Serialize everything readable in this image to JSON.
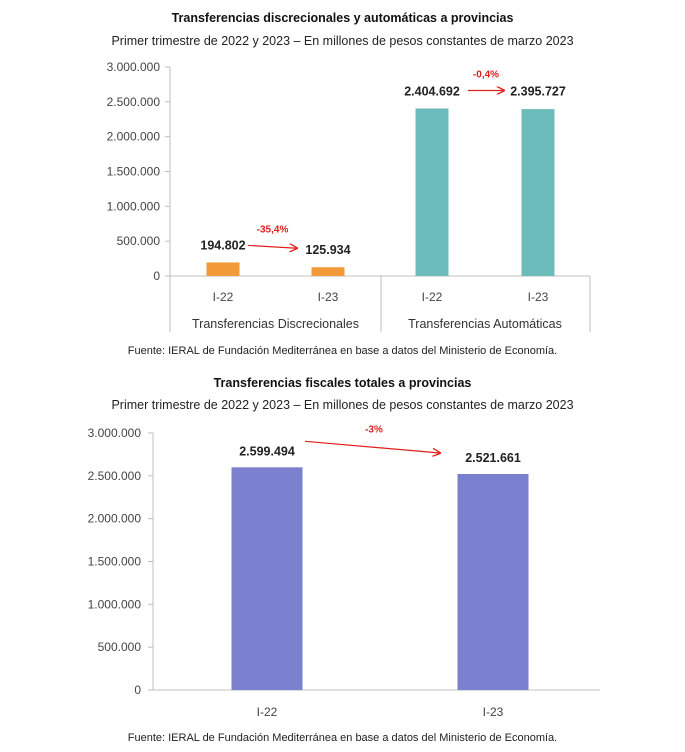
{
  "chart_data": [
    {
      "type": "bar",
      "title": "Transferencias discrecionales y automáticas a provincias",
      "subtitle": "Primer trimestre de 2022 y 2023 – En millones de pesos constantes de marzo 2023",
      "source": "Fuente: IERAL de Fundación Mediterránea en base a datos del Ministerio de Economía.",
      "ylim": [
        0,
        3000000
      ],
      "yticks": [
        "3.000.000",
        "2.500.000",
        "2.000.000",
        "1.500.000",
        "1.000.000",
        "500.000",
        "0"
      ],
      "ytick_values": [
        3000000,
        2500000,
        2000000,
        1500000,
        1000000,
        500000,
        0
      ],
      "groups": [
        {
          "name": "Transferencias Discrecionales",
          "color": "#f39a38",
          "categories": [
            "I-22",
            "I-23"
          ],
          "values": [
            194802,
            125934
          ],
          "value_labels": [
            "194.802",
            "125.934"
          ],
          "change_label": "-35,4%"
        },
        {
          "name": "Transferencias Automáticas",
          "color": "#6bbcba",
          "categories": [
            "I-22",
            "I-23"
          ],
          "values": [
            2404692,
            2395727
          ],
          "value_labels": [
            "2.404.692",
            "2.395.727"
          ],
          "change_label": "-0,4%"
        }
      ],
      "grid": false
    },
    {
      "type": "bar",
      "title": "Transferencias fiscales totales a provincias",
      "subtitle": "Primer trimestre de 2022 y 2023 – En millones de pesos constantes de marzo 2023",
      "source": "Fuente: IERAL de Fundación Mediterránea en base a datos del Ministerio de Economía.",
      "ylim": [
        0,
        3000000
      ],
      "yticks": [
        "3.000.000",
        "2.500.000",
        "2.000.000",
        "1.500.000",
        "1.000.000",
        "500.000",
        "0"
      ],
      "ytick_values": [
        3000000,
        2500000,
        2000000,
        1500000,
        1000000,
        500000,
        0
      ],
      "color": "#7b80ce",
      "categories": [
        "I-22",
        "I-23"
      ],
      "values": [
        2599494,
        2521661
      ],
      "value_labels": [
        "2.599.494",
        "2.521.661"
      ],
      "change_label": "-3%",
      "grid": false
    }
  ],
  "colors": {
    "arrow": "#e0201c",
    "axis": "#bfbfbf"
  }
}
